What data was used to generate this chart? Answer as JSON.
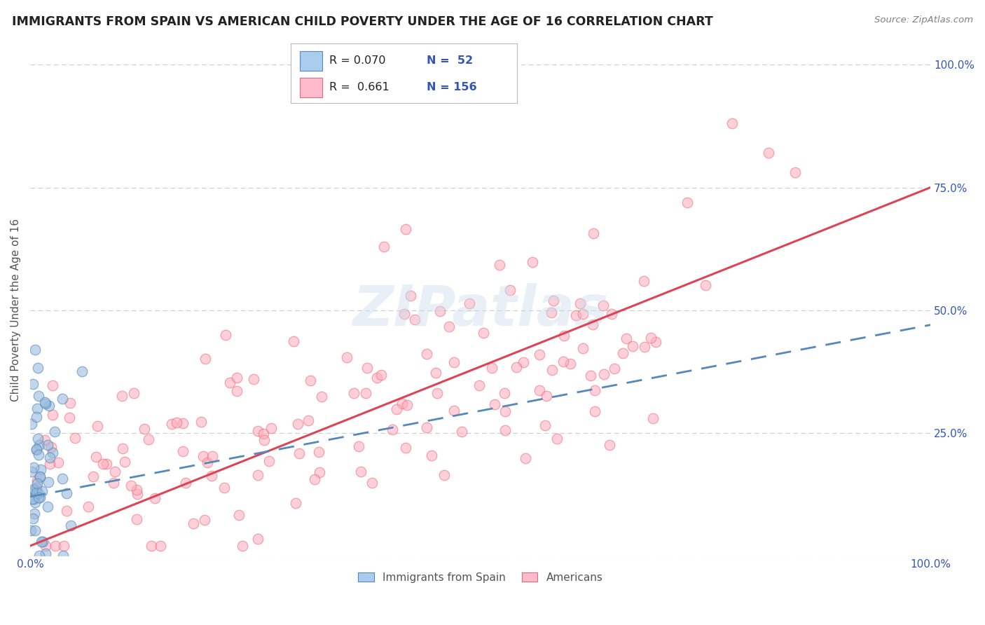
{
  "title": "IMMIGRANTS FROM SPAIN VS AMERICAN CHILD POVERTY UNDER THE AGE OF 16 CORRELATION CHART",
  "source": "Source: ZipAtlas.com",
  "ylabel": "Child Poverty Under the Age of 16",
  "legend_label1": "Immigrants from Spain",
  "legend_label2": "Americans",
  "r1": 0.07,
  "n1": 52,
  "r2": 0.661,
  "n2": 156,
  "color_blue_fill": "#99BBDD",
  "color_blue_edge": "#5588BB",
  "color_pink_fill": "#FFAABB",
  "color_pink_edge": "#EE6677",
  "color_blue_line": "#5588BB",
  "color_pink_line": "#DD4455",
  "color_legend_blue_fill": "#AACCEE",
  "color_legend_pink_fill": "#FFBBCC",
  "background_color": "#FFFFFF",
  "grid_color": "#CCCCCC",
  "title_color": "#222222",
  "axis_label_color": "#555555",
  "tick_color": "#3355BB",
  "xlim": [
    0.0,
    1.0
  ],
  "ylim": [
    0.0,
    1.0
  ],
  "yticks": [
    0.0,
    0.25,
    0.5,
    0.75,
    1.0
  ],
  "ytick_labels_right": [
    "",
    "25.0%",
    "50.0%",
    "75.0%",
    "100.0%"
  ],
  "xtick_labels": [
    "0.0%",
    "100.0%"
  ]
}
